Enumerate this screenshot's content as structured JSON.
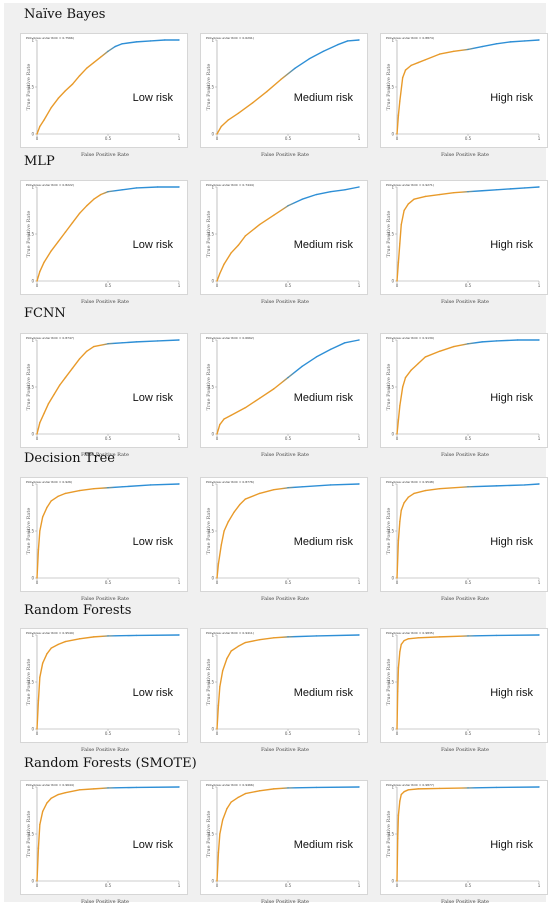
{
  "colors": {
    "roc_line": "#2e8fd6",
    "fill_start": "#e89a2a",
    "axis": "#9a9a9a"
  },
  "models": [
    {
      "name": "Naïve Bayes",
      "panels": [
        {
          "risk": "Low risk",
          "title": "Plot (Area under ROC = 0.7566)",
          "xlabel": "False Positive Rate",
          "ylabel": "True Positive Rate",
          "curve": "nb_low"
        },
        {
          "risk": "Medium risk",
          "title": "Plot (Area under ROC = 0.6291)",
          "xlabel": "False Positive Rate",
          "ylabel": "True Positive Rate",
          "curve": "nb_med"
        },
        {
          "risk": "High risk",
          "title": "Plot (Area under ROC = 0.8874)",
          "xlabel": "False Positive Rate",
          "ylabel": "True Positive Rate",
          "curve": "nb_high"
        }
      ]
    },
    {
      "name": "MLP",
      "panels": [
        {
          "risk": "Low risk",
          "title": "Plot (Area under ROC = 0.8222)",
          "xlabel": "False Positive Rate",
          "ylabel": "True Positive Rate",
          "curve": "mlp_low"
        },
        {
          "risk": "Medium risk",
          "title": "Plot (Area under ROC = 0.7444)",
          "xlabel": "False Positive Rate",
          "ylabel": "True Positive Rate",
          "curve": "mlp_med"
        },
        {
          "risk": "High risk",
          "title": "Plot (Area under ROC = 0.9271)",
          "xlabel": "False Positive Rate",
          "ylabel": "True Positive Rate",
          "curve": "mlp_high"
        }
      ]
    },
    {
      "name": "FCNN",
      "panels": [
        {
          "risk": "Low risk",
          "title": "Plot (Area under ROC = 0.8747)",
          "xlabel": "False Positive Rate",
          "ylabel": "True Positive Rate",
          "curve": "fc_low"
        },
        {
          "risk": "Medium risk",
          "title": "Plot (Area under ROC = 0.6662)",
          "xlabel": "False Positive Rate",
          "ylabel": "True Positive Rate",
          "curve": "fc_med"
        },
        {
          "risk": "High risk",
          "title": "Plot (Area under ROC = 0.9139)",
          "xlabel": "False Positive Rate",
          "ylabel": "True Positive Rate",
          "curve": "fc_high"
        }
      ]
    },
    {
      "name": "Decision Tree",
      "panels": [
        {
          "risk": "Low risk",
          "title": "Plot (Area under ROC = 0.926)",
          "xlabel": "False Positive Rate",
          "ylabel": "True Positive Rate",
          "curve": "dt_low"
        },
        {
          "risk": "Medium risk",
          "title": "Plot (Area under ROC = 0.8776)",
          "xlabel": "False Positive Rate",
          "ylabel": "True Positive Rate",
          "curve": "dt_med"
        },
        {
          "risk": "High risk",
          "title": "Plot (Area under ROC = 0.9548)",
          "xlabel": "False Positive Rate",
          "ylabel": "True Positive Rate",
          "curve": "dt_high"
        }
      ]
    },
    {
      "name": "Random Forests",
      "panels": [
        {
          "risk": "Low risk",
          "title": "Plot (Area under ROC = 0.9549)",
          "xlabel": "False Positive Rate",
          "ylabel": "True Positive Rate",
          "curve": "rf_low"
        },
        {
          "risk": "Medium risk",
          "title": "Plot (Area under ROC = 0.9411)",
          "xlabel": "False Positive Rate",
          "ylabel": "True Positive Rate",
          "curve": "rf_med"
        },
        {
          "risk": "High risk",
          "title": "Plot (Area under ROC = 0.9835)",
          "xlabel": "False Positive Rate",
          "ylabel": "True Positive Rate",
          "curve": "rf_high"
        }
      ]
    },
    {
      "name": "Random Forests (SMOTE)",
      "panels": [
        {
          "risk": "Low risk",
          "title": "Plot (Area under ROC = 0.9644)",
          "xlabel": "False Positive Rate",
          "ylabel": "True Positive Rate",
          "curve": "rs_low"
        },
        {
          "risk": "Medium risk",
          "title": "Plot (Area under ROC = 0.9466)",
          "xlabel": "False Positive Rate",
          "ylabel": "True Positive Rate",
          "curve": "rs_med"
        },
        {
          "risk": "High risk",
          "title": "Plot (Area under ROC = 0.9877)",
          "xlabel": "False Positive Rate",
          "ylabel": "True Positive Rate",
          "curve": "rs_high"
        }
      ]
    }
  ],
  "chart_data": {
    "type": "line",
    "xlim": [
      0,
      1
    ],
    "ylim": [
      0,
      1
    ],
    "xticks": [
      "0",
      "0.5",
      "1"
    ],
    "yticks": [
      "0",
      "0.5",
      "1"
    ],
    "curves": {
      "nb_low": [
        [
          0,
          0
        ],
        [
          0.02,
          0.08
        ],
        [
          0.05,
          0.15
        ],
        [
          0.1,
          0.28
        ],
        [
          0.15,
          0.38
        ],
        [
          0.2,
          0.46
        ],
        [
          0.25,
          0.53
        ],
        [
          0.3,
          0.62
        ],
        [
          0.35,
          0.7
        ],
        [
          0.4,
          0.76
        ],
        [
          0.45,
          0.82
        ],
        [
          0.5,
          0.88
        ],
        [
          0.55,
          0.93
        ],
        [
          0.6,
          0.96
        ],
        [
          0.7,
          0.98
        ],
        [
          0.8,
          0.99
        ],
        [
          0.9,
          1
        ],
        [
          1,
          1
        ]
      ],
      "nb_med": [
        [
          0,
          0
        ],
        [
          0.03,
          0.08
        ],
        [
          0.08,
          0.15
        ],
        [
          0.15,
          0.22
        ],
        [
          0.25,
          0.33
        ],
        [
          0.35,
          0.45
        ],
        [
          0.45,
          0.58
        ],
        [
          0.55,
          0.7
        ],
        [
          0.65,
          0.8
        ],
        [
          0.75,
          0.88
        ],
        [
          0.85,
          0.95
        ],
        [
          0.92,
          0.99
        ],
        [
          1,
          1
        ]
      ],
      "nb_high": [
        [
          0,
          0
        ],
        [
          0.01,
          0.2
        ],
        [
          0.02,
          0.35
        ],
        [
          0.04,
          0.6
        ],
        [
          0.06,
          0.68
        ],
        [
          0.1,
          0.73
        ],
        [
          0.15,
          0.76
        ],
        [
          0.2,
          0.79
        ],
        [
          0.3,
          0.85
        ],
        [
          0.4,
          0.88
        ],
        [
          0.5,
          0.9
        ],
        [
          0.6,
          0.93
        ],
        [
          0.7,
          0.96
        ],
        [
          0.8,
          0.98
        ],
        [
          0.9,
          0.99
        ],
        [
          1,
          1
        ]
      ],
      "mlp_low": [
        [
          0,
          0
        ],
        [
          0.02,
          0.1
        ],
        [
          0.05,
          0.2
        ],
        [
          0.1,
          0.32
        ],
        [
          0.15,
          0.42
        ],
        [
          0.2,
          0.52
        ],
        [
          0.25,
          0.62
        ],
        [
          0.3,
          0.72
        ],
        [
          0.35,
          0.8
        ],
        [
          0.4,
          0.87
        ],
        [
          0.45,
          0.92
        ],
        [
          0.5,
          0.95
        ],
        [
          0.6,
          0.97
        ],
        [
          0.7,
          0.99
        ],
        [
          0.85,
          1
        ],
        [
          1,
          1
        ]
      ],
      "mlp_med": [
        [
          0,
          0
        ],
        [
          0.02,
          0.08
        ],
        [
          0.05,
          0.18
        ],
        [
          0.1,
          0.3
        ],
        [
          0.15,
          0.38
        ],
        [
          0.2,
          0.48
        ],
        [
          0.3,
          0.6
        ],
        [
          0.4,
          0.7
        ],
        [
          0.5,
          0.8
        ],
        [
          0.6,
          0.87
        ],
        [
          0.7,
          0.92
        ],
        [
          0.8,
          0.95
        ],
        [
          0.9,
          0.97
        ],
        [
          1,
          1
        ]
      ],
      "mlp_high": [
        [
          0,
          0
        ],
        [
          0.01,
          0.2
        ],
        [
          0.02,
          0.4
        ],
        [
          0.03,
          0.6
        ],
        [
          0.05,
          0.75
        ],
        [
          0.08,
          0.82
        ],
        [
          0.12,
          0.87
        ],
        [
          0.2,
          0.9
        ],
        [
          0.3,
          0.92
        ],
        [
          0.4,
          0.94
        ],
        [
          0.5,
          0.95
        ],
        [
          0.6,
          0.96
        ],
        [
          0.7,
          0.97
        ],
        [
          0.8,
          0.98
        ],
        [
          0.9,
          0.99
        ],
        [
          1,
          1
        ]
      ],
      "fc_low": [
        [
          0,
          0
        ],
        [
          0.02,
          0.12
        ],
        [
          0.05,
          0.22
        ],
        [
          0.08,
          0.32
        ],
        [
          0.12,
          0.42
        ],
        [
          0.16,
          0.52
        ],
        [
          0.2,
          0.6
        ],
        [
          0.25,
          0.7
        ],
        [
          0.3,
          0.8
        ],
        [
          0.35,
          0.88
        ],
        [
          0.4,
          0.93
        ],
        [
          0.5,
          0.96
        ],
        [
          0.6,
          0.97
        ],
        [
          0.7,
          0.98
        ],
        [
          0.85,
          0.99
        ],
        [
          1,
          1
        ]
      ],
      "fc_med": [
        [
          0,
          0
        ],
        [
          0.02,
          0.1
        ],
        [
          0.05,
          0.16
        ],
        [
          0.1,
          0.2
        ],
        [
          0.2,
          0.28
        ],
        [
          0.3,
          0.38
        ],
        [
          0.4,
          0.48
        ],
        [
          0.5,
          0.6
        ],
        [
          0.6,
          0.72
        ],
        [
          0.7,
          0.82
        ],
        [
          0.8,
          0.9
        ],
        [
          0.9,
          0.97
        ],
        [
          1,
          1
        ]
      ],
      "fc_high": [
        [
          0,
          0
        ],
        [
          0.01,
          0.15
        ],
        [
          0.02,
          0.3
        ],
        [
          0.04,
          0.5
        ],
        [
          0.06,
          0.6
        ],
        [
          0.1,
          0.68
        ],
        [
          0.15,
          0.75
        ],
        [
          0.2,
          0.82
        ],
        [
          0.3,
          0.88
        ],
        [
          0.4,
          0.93
        ],
        [
          0.5,
          0.96
        ],
        [
          0.6,
          0.98
        ],
        [
          0.7,
          0.99
        ],
        [
          0.85,
          1
        ],
        [
          1,
          1
        ]
      ],
      "dt_low": [
        [
          0,
          0
        ],
        [
          0.01,
          0.3
        ],
        [
          0.02,
          0.5
        ],
        [
          0.04,
          0.65
        ],
        [
          0.07,
          0.75
        ],
        [
          0.1,
          0.82
        ],
        [
          0.15,
          0.87
        ],
        [
          0.2,
          0.9
        ],
        [
          0.3,
          0.93
        ],
        [
          0.4,
          0.95
        ],
        [
          0.5,
          0.96
        ],
        [
          0.6,
          0.97
        ],
        [
          0.8,
          0.99
        ],
        [
          1,
          1
        ]
      ],
      "dt_med": [
        [
          0,
          0
        ],
        [
          0.01,
          0.15
        ],
        [
          0.03,
          0.35
        ],
        [
          0.05,
          0.5
        ],
        [
          0.08,
          0.6
        ],
        [
          0.12,
          0.7
        ],
        [
          0.16,
          0.78
        ],
        [
          0.2,
          0.84
        ],
        [
          0.3,
          0.9
        ],
        [
          0.4,
          0.94
        ],
        [
          0.5,
          0.96
        ],
        [
          0.6,
          0.97
        ],
        [
          0.8,
          0.99
        ],
        [
          1,
          1
        ]
      ],
      "dt_high": [
        [
          0,
          0
        ],
        [
          0.01,
          0.4
        ],
        [
          0.02,
          0.6
        ],
        [
          0.03,
          0.72
        ],
        [
          0.05,
          0.8
        ],
        [
          0.08,
          0.86
        ],
        [
          0.12,
          0.9
        ],
        [
          0.2,
          0.93
        ],
        [
          0.3,
          0.95
        ],
        [
          0.5,
          0.97
        ],
        [
          0.7,
          0.98
        ],
        [
          0.9,
          0.99
        ],
        [
          1,
          1
        ]
      ],
      "rf_low": [
        [
          0,
          0
        ],
        [
          0.01,
          0.3
        ],
        [
          0.02,
          0.55
        ],
        [
          0.04,
          0.7
        ],
        [
          0.07,
          0.8
        ],
        [
          0.1,
          0.86
        ],
        [
          0.15,
          0.9
        ],
        [
          0.2,
          0.93
        ],
        [
          0.3,
          0.96
        ],
        [
          0.4,
          0.98
        ],
        [
          0.5,
          0.99
        ],
        [
          0.7,
          0.995
        ],
        [
          1,
          1
        ]
      ],
      "rf_med": [
        [
          0,
          0
        ],
        [
          0.01,
          0.25
        ],
        [
          0.02,
          0.45
        ],
        [
          0.04,
          0.62
        ],
        [
          0.07,
          0.75
        ],
        [
          0.1,
          0.83
        ],
        [
          0.15,
          0.88
        ],
        [
          0.2,
          0.92
        ],
        [
          0.3,
          0.95
        ],
        [
          0.4,
          0.97
        ],
        [
          0.5,
          0.98
        ],
        [
          0.7,
          0.99
        ],
        [
          1,
          1
        ]
      ],
      "rf_high": [
        [
          0,
          0
        ],
        [
          0.005,
          0.4
        ],
        [
          0.01,
          0.65
        ],
        [
          0.02,
          0.82
        ],
        [
          0.03,
          0.9
        ],
        [
          0.05,
          0.94
        ],
        [
          0.08,
          0.96
        ],
        [
          0.15,
          0.97
        ],
        [
          0.3,
          0.98
        ],
        [
          0.5,
          0.99
        ],
        [
          0.7,
          0.995
        ],
        [
          1,
          1
        ]
      ],
      "rs_low": [
        [
          0,
          0
        ],
        [
          0.01,
          0.35
        ],
        [
          0.02,
          0.6
        ],
        [
          0.04,
          0.74
        ],
        [
          0.07,
          0.83
        ],
        [
          0.1,
          0.88
        ],
        [
          0.15,
          0.92
        ],
        [
          0.2,
          0.94
        ],
        [
          0.3,
          0.97
        ],
        [
          0.4,
          0.98
        ],
        [
          0.5,
          0.99
        ],
        [
          0.7,
          0.995
        ],
        [
          1,
          1
        ]
      ],
      "rs_med": [
        [
          0,
          0
        ],
        [
          0.01,
          0.3
        ],
        [
          0.02,
          0.5
        ],
        [
          0.04,
          0.65
        ],
        [
          0.07,
          0.77
        ],
        [
          0.1,
          0.84
        ],
        [
          0.15,
          0.89
        ],
        [
          0.2,
          0.93
        ],
        [
          0.3,
          0.96
        ],
        [
          0.4,
          0.98
        ],
        [
          0.5,
          0.99
        ],
        [
          0.7,
          0.995
        ],
        [
          1,
          1
        ]
      ],
      "rs_high": [
        [
          0,
          0
        ],
        [
          0.005,
          0.45
        ],
        [
          0.01,
          0.7
        ],
        [
          0.02,
          0.85
        ],
        [
          0.03,
          0.92
        ],
        [
          0.05,
          0.95
        ],
        [
          0.08,
          0.97
        ],
        [
          0.15,
          0.98
        ],
        [
          0.3,
          0.985
        ],
        [
          0.5,
          0.99
        ],
        [
          0.7,
          0.995
        ],
        [
          1,
          1
        ]
      ]
    }
  }
}
